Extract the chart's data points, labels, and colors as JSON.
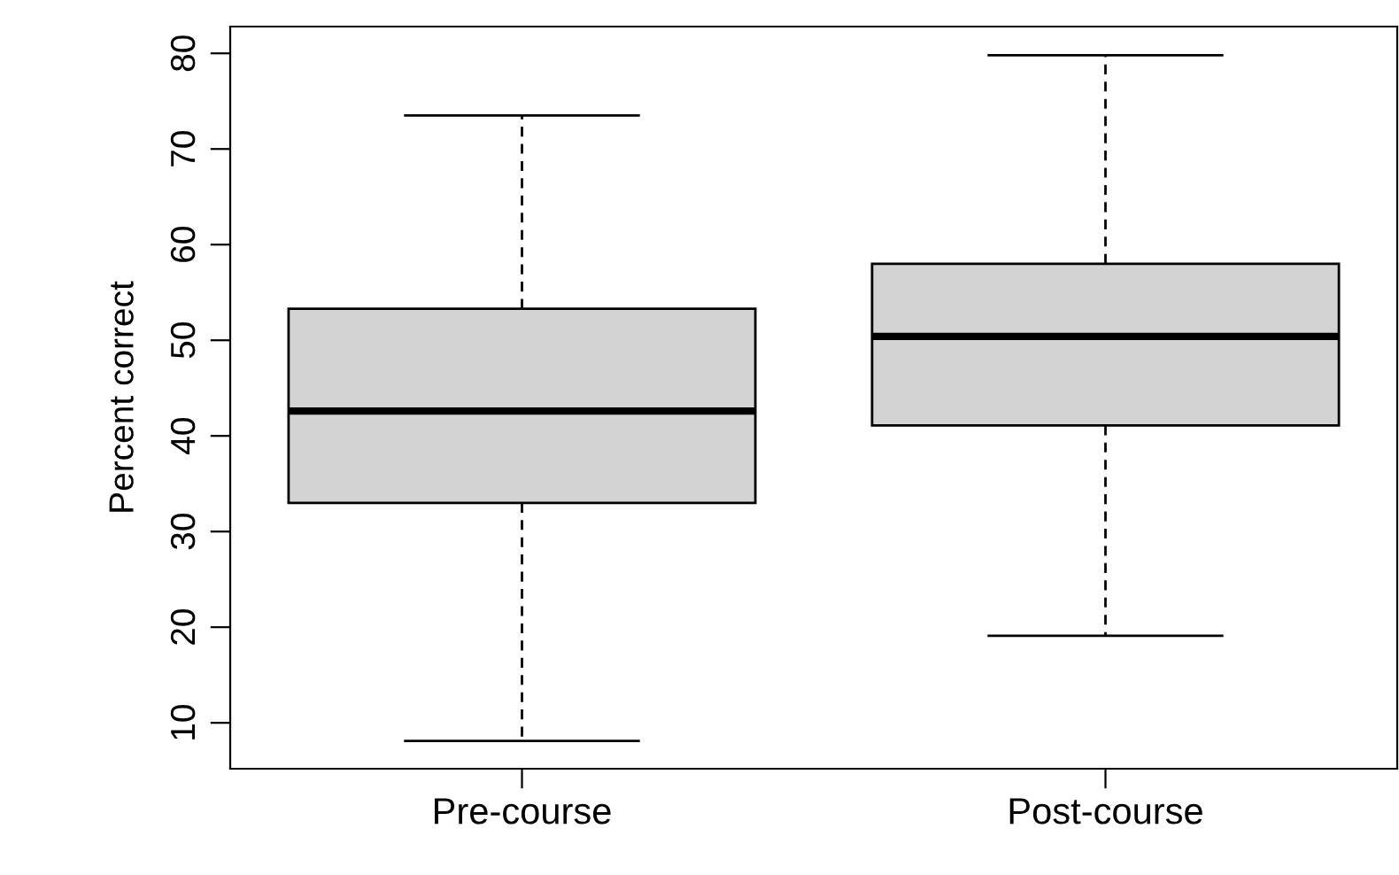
{
  "chart_data": {
    "type": "box",
    "ylabel": "Percent correct",
    "categories": [
      "Pre-course",
      "Post-course"
    ],
    "boxes": [
      {
        "low": 8.1,
        "q1": 33,
        "median": 42.6,
        "q3": 53.3,
        "high": 73.5
      },
      {
        "low": 19.1,
        "q1": 41.1,
        "median": 50.4,
        "q3": 58,
        "high": 79.8
      }
    ],
    "color": "#d3d3d3",
    "ylim": [
      5.2,
      82.8
    ],
    "yticks": [
      10,
      20,
      30,
      40,
      50,
      60,
      70,
      80
    ],
    "grid": false,
    "legend": false
  }
}
